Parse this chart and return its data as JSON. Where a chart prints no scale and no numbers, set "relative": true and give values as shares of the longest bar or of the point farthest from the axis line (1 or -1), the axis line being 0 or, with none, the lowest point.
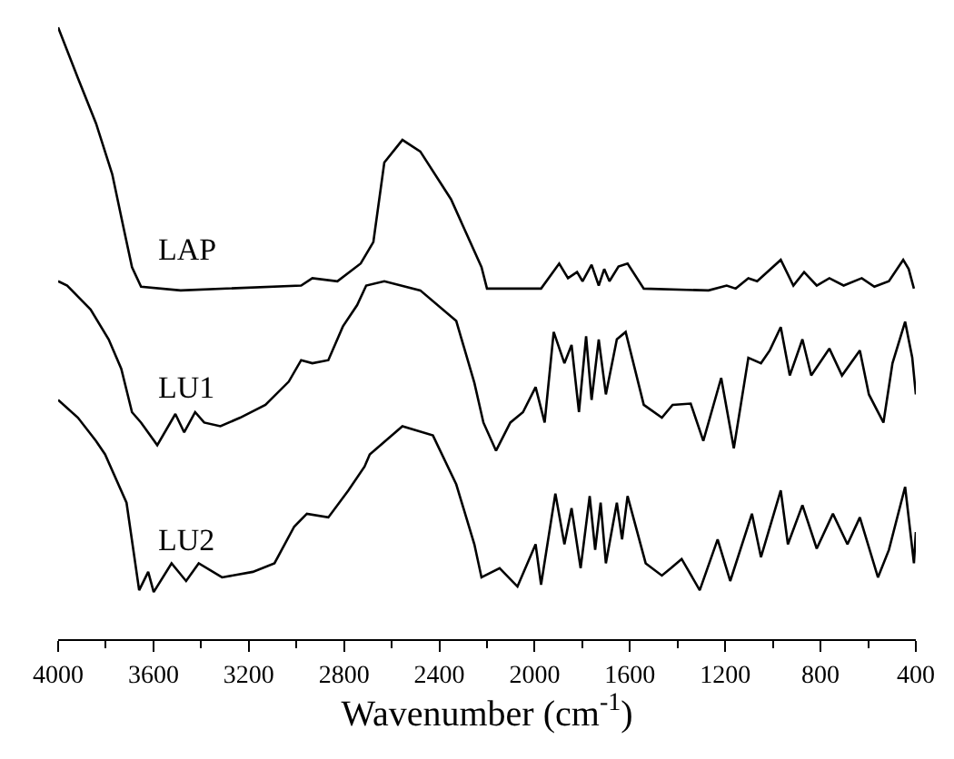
{
  "chart_data": {
    "type": "line",
    "relative": true,
    "xlabel": "Wavenumber (cm$^{-1}$)",
    "xlim": [
      4000,
      400
    ],
    "xticks": [
      4000,
      3600,
      3200,
      2800,
      2400,
      2000,
      1600,
      1200,
      800,
      400
    ],
    "legend": false,
    "marker": "none",
    "line_style": "solid",
    "series": [
      {
        "name": "LAP",
        "color": "#000000",
        "x": [
          4000,
          3917,
          3841,
          3773,
          3728,
          3690,
          3652,
          3486,
          2980,
          2933,
          2828,
          2730,
          2677,
          2631,
          2555,
          2480,
          2351,
          2223,
          2200,
          1973,
          1897,
          1860,
          1822,
          1799,
          1761,
          1731,
          1708,
          1686,
          1648,
          1610,
          1542,
          1270,
          1194,
          1156,
          1103,
          1066,
          967,
          914,
          869,
          816,
          763,
          703,
          627,
          574,
          513,
          453,
          430,
          408
        ],
        "values": [
          1.0,
          0.917,
          0.843,
          0.76,
          0.677,
          0.608,
          0.576,
          0.57,
          0.578,
          0.59,
          0.585,
          0.614,
          0.649,
          0.779,
          0.816,
          0.797,
          0.719,
          0.608,
          0.573,
          0.573,
          0.614,
          0.59,
          0.6,
          0.585,
          0.612,
          0.578,
          0.605,
          0.585,
          0.609,
          0.614,
          0.573,
          0.57,
          0.578,
          0.573,
          0.59,
          0.585,
          0.62,
          0.578,
          0.6,
          0.578,
          0.59,
          0.578,
          0.59,
          0.576,
          0.585,
          0.62,
          0.605,
          0.573
        ]
      },
      {
        "name": "LU1",
        "color": "#000000",
        "x": [
          4000,
          3962,
          3864,
          3788,
          3735,
          3690,
          3652,
          3584,
          3508,
          3471,
          3425,
          3387,
          3319,
          3236,
          3130,
          3032,
          2980,
          2933,
          2866,
          2805,
          2745,
          2707,
          2631,
          2480,
          2329,
          2253,
          2215,
          2162,
          2102,
          2049,
          1996,
          1958,
          1920,
          1875,
          1845,
          1814,
          1784,
          1761,
          1731,
          1701,
          1655,
          1618,
          1542,
          1466,
          1421,
          1345,
          1292,
          1217,
          1164,
          1103,
          1050,
          1013,
          967,
          929,
          876,
          839,
          763,
          710,
          635,
          597,
          536,
          498,
          445,
          415,
          400
        ],
        "values": [
          0.585,
          0.578,
          0.539,
          0.49,
          0.442,
          0.371,
          0.354,
          0.317,
          0.368,
          0.338,
          0.371,
          0.354,
          0.348,
          0.362,
          0.383,
          0.421,
          0.456,
          0.451,
          0.456,
          0.511,
          0.546,
          0.578,
          0.585,
          0.57,
          0.52,
          0.419,
          0.354,
          0.308,
          0.354,
          0.371,
          0.412,
          0.354,
          0.502,
          0.451,
          0.481,
          0.371,
          0.495,
          0.391,
          0.49,
          0.4,
          0.49,
          0.502,
          0.383,
          0.362,
          0.383,
          0.385,
          0.324,
          0.427,
          0.312,
          0.46,
          0.451,
          0.472,
          0.51,
          0.431,
          0.49,
          0.431,
          0.475,
          0.431,
          0.472,
          0.4,
          0.354,
          0.451,
          0.519,
          0.46,
          0.4
        ]
      },
      {
        "name": "LU2",
        "color": "#000000",
        "x": [
          4000,
          3917,
          3841,
          3803,
          3713,
          3660,
          3622,
          3599,
          3524,
          3463,
          3410,
          3312,
          3183,
          3092,
          3009,
          2956,
          2866,
          2782,
          2714,
          2692,
          2555,
          2427,
          2329,
          2253,
          2223,
          2147,
          2072,
          1996,
          1973,
          1913,
          1875,
          1845,
          1807,
          1769,
          1746,
          1723,
          1701,
          1655,
          1633,
          1610,
          1534,
          1466,
          1428,
          1383,
          1307,
          1232,
          1179,
          1088,
          1050,
          967,
          937,
          876,
          816,
          748,
          687,
          635,
          559,
          513,
          445,
          408,
          400
        ],
        "values": [
          0.391,
          0.362,
          0.324,
          0.302,
          0.223,
          0.08,
          0.11,
          0.077,
          0.124,
          0.095,
          0.124,
          0.101,
          0.11,
          0.124,
          0.184,
          0.205,
          0.199,
          0.243,
          0.282,
          0.302,
          0.348,
          0.333,
          0.253,
          0.155,
          0.101,
          0.116,
          0.086,
          0.155,
          0.089,
          0.238,
          0.155,
          0.214,
          0.116,
          0.234,
          0.146,
          0.223,
          0.124,
          0.223,
          0.163,
          0.234,
          0.124,
          0.104,
          0.116,
          0.131,
          0.08,
          0.163,
          0.095,
          0.205,
          0.134,
          0.243,
          0.155,
          0.219,
          0.148,
          0.205,
          0.155,
          0.199,
          0.101,
          0.146,
          0.249,
          0.124,
          0.175
        ]
      }
    ]
  }
}
